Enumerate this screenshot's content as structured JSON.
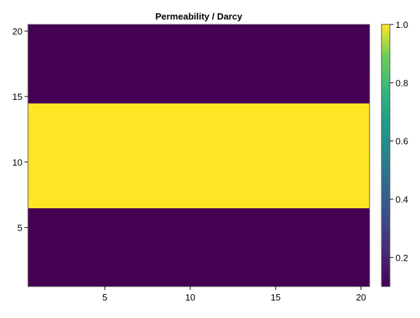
{
  "chart_data": {
    "type": "heatmap",
    "title": "Permeability / Darcy",
    "xlabel": "",
    "ylabel": "",
    "xlim": [
      0.5,
      20.5
    ],
    "ylim": [
      0.5,
      20.5
    ],
    "x_ticks": [
      5,
      10,
      15,
      20
    ],
    "y_ticks": [
      5,
      10,
      15,
      20
    ],
    "grid": false,
    "nx": 20,
    "ny": 20,
    "description_rows": "rows y=1..6 and y=15..20 have value 0.1; rows y=7..14 have value 1.0",
    "row_values": [
      0.1,
      0.1,
      0.1,
      0.1,
      0.1,
      0.1,
      1.0,
      1.0,
      1.0,
      1.0,
      1.0,
      1.0,
      1.0,
      1.0,
      0.1,
      0.1,
      0.1,
      0.1,
      0.1,
      0.1
    ],
    "colormap": "viridis",
    "colorbar": {
      "range": [
        0.1,
        1.0
      ],
      "ticks": [
        "0.2",
        "0.4",
        "0.6",
        "0.8",
        "1.0"
      ],
      "placement": "right"
    },
    "colors": {
      "low": "#440154",
      "high": "#fde725"
    }
  }
}
